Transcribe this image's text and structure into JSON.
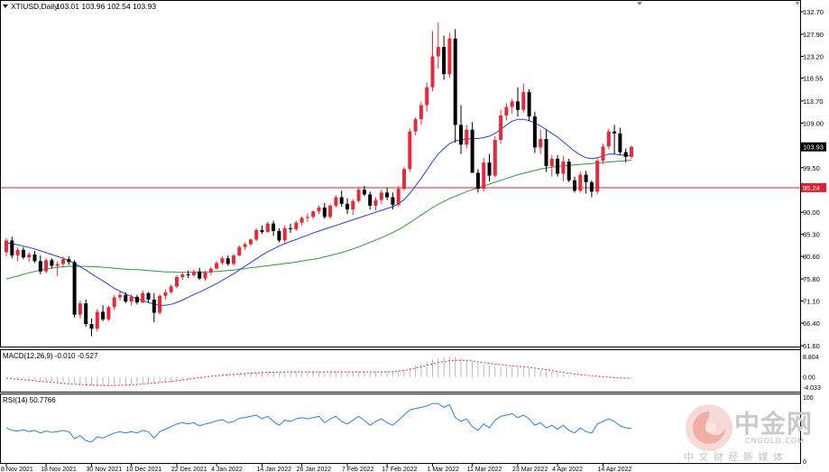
{
  "header": {
    "symbol": "XTIUSD,Daily",
    "ohlc": "103.01 103.96 102.54 103.93"
  },
  "macd_panel": {
    "label": "MACD(12,26,9) -0.010 -0.527",
    "ticks": [
      "8.804",
      "0.00",
      "-4.033"
    ]
  },
  "rsi_panel": {
    "label": "RSI(14) 50.7766",
    "ticks": [
      "100",
      "0"
    ]
  },
  "price_axis": {
    "ticks": [
      "132.70",
      "127.90",
      "123.20",
      "118.55",
      "113.70",
      "109.00",
      "99.50",
      "90.00",
      "85.30",
      "80.60",
      "75.80",
      "71.10",
      "66.40",
      "61.60"
    ],
    "current_price_label": "103.93",
    "hline_label": "95.24"
  },
  "date_axis": {
    "labels": [
      "8 Nov 2021",
      "18 Nov 2021",
      "30 Nov 2021",
      "10 Dec 2021",
      "22 Dec 2021",
      "4 Jan 2022",
      "14 Jan 2022",
      "26 Jan 2022",
      "7 Feb 2022",
      "17 Feb 2022",
      "1 Mar 2022",
      "11 Mar 2022",
      "23 Mar 2022",
      "4 Apr 2022",
      "14 Apr 2022"
    ]
  },
  "watermark": {
    "brand_cn": "中金网",
    "sub_cn": "中 文 财 经 新 媒 体",
    "domain": "CNGOLD.COM"
  },
  "colors": {
    "bull": "#e8293a",
    "bear": "#000000",
    "ma_fast": "#1f3fe6",
    "ma_slow": "#2f9a3a",
    "hline": "#dd2233",
    "macd_hist": "#b9b9b9",
    "macd_signal": "#e8293a",
    "rsi": "#2a7fe0",
    "current_price_bg": "#000000",
    "hline_label_bg": "#dd2233"
  },
  "chart_data": {
    "type": "candlestick",
    "title": "XTIUSD,Daily",
    "ylim": [
      61.6,
      132.7
    ],
    "hline": 95.24,
    "current_price": 103.93,
    "ohlc": [
      [
        81.5,
        84.5,
        80.6,
        84.0
      ],
      [
        84.0,
        84.8,
        80.2,
        80.8
      ],
      [
        80.8,
        82.5,
        79.6,
        82.0
      ],
      [
        82.0,
        82.6,
        80.0,
        80.4
      ],
      [
        80.4,
        81.5,
        79.4,
        81.0
      ],
      [
        81.0,
        81.8,
        79.2,
        79.6
      ],
      [
        79.6,
        80.8,
        76.8,
        77.4
      ],
      [
        77.4,
        80.2,
        77.0,
        79.8
      ],
      [
        79.8,
        80.2,
        78.0,
        78.6
      ],
      [
        78.6,
        79.6,
        76.4,
        79.0
      ],
      [
        79.0,
        80.6,
        78.2,
        80.0
      ],
      [
        80.0,
        80.6,
        78.8,
        79.4
      ],
      [
        79.4,
        79.8,
        67.6,
        68.2
      ],
      [
        68.2,
        71.2,
        67.4,
        70.6
      ],
      [
        70.6,
        71.4,
        65.6,
        66.2
      ],
      [
        66.2,
        67.4,
        63.6,
        65.2
      ],
      [
        65.2,
        69.4,
        64.6,
        68.8
      ],
      [
        68.8,
        70.2,
        66.8,
        67.2
      ],
      [
        67.2,
        70.2,
        66.8,
        69.8
      ],
      [
        69.8,
        72.4,
        69.2,
        71.9
      ],
      [
        71.9,
        73.2,
        71.2,
        72.4
      ],
      [
        72.4,
        73.0,
        70.6,
        71.0
      ],
      [
        71.0,
        72.6,
        70.2,
        72.0
      ],
      [
        72.0,
        72.4,
        70.4,
        70.8
      ],
      [
        70.8,
        73.4,
        70.6,
        72.8
      ],
      [
        72.8,
        73.0,
        70.8,
        71.4
      ],
      [
        71.4,
        72.8,
        66.6,
        68.6
      ],
      [
        68.6,
        72.6,
        68.2,
        72.2
      ],
      [
        72.2,
        73.6,
        71.4,
        73.0
      ],
      [
        73.0,
        74.6,
        72.6,
        74.2
      ],
      [
        74.2,
        76.6,
        73.8,
        76.2
      ],
      [
        76.2,
        77.2,
        75.6,
        76.8
      ],
      [
        76.8,
        77.6,
        76.0,
        76.6
      ],
      [
        76.6,
        77.8,
        76.2,
        77.4
      ],
      [
        77.4,
        78.2,
        75.6,
        75.9
      ],
      [
        75.9,
        77.6,
        75.4,
        77.2
      ],
      [
        77.2,
        78.4,
        76.6,
        78.0
      ],
      [
        78.0,
        79.6,
        77.8,
        79.2
      ],
      [
        79.2,
        80.6,
        78.8,
        80.2
      ],
      [
        80.2,
        80.8,
        78.6,
        79.0
      ],
      [
        79.0,
        81.2,
        78.6,
        80.8
      ],
      [
        80.8,
        83.0,
        80.6,
        82.6
      ],
      [
        82.6,
        83.6,
        82.0,
        83.2
      ],
      [
        83.2,
        84.4,
        82.8,
        84.2
      ],
      [
        84.2,
        86.6,
        83.8,
        86.2
      ],
      [
        86.2,
        87.2,
        85.4,
        85.8
      ],
      [
        85.8,
        88.0,
        85.6,
        87.6
      ],
      [
        87.6,
        88.2,
        85.0,
        86.0
      ],
      [
        86.0,
        86.6,
        83.6,
        84.0
      ],
      [
        84.0,
        87.2,
        83.2,
        86.6
      ],
      [
        86.6,
        87.6,
        85.6,
        86.4
      ],
      [
        86.4,
        88.2,
        86.0,
        87.8
      ],
      [
        87.8,
        89.2,
        87.2,
        88.8
      ],
      [
        88.8,
        89.8,
        88.0,
        89.0
      ],
      [
        89.0,
        90.4,
        88.6,
        90.2
      ],
      [
        90.2,
        91.4,
        89.6,
        91.0
      ],
      [
        91.0,
        92.0,
        88.6,
        89.0
      ],
      [
        89.0,
        91.8,
        88.6,
        91.4
      ],
      [
        91.4,
        93.6,
        91.0,
        93.2
      ],
      [
        93.2,
        94.6,
        91.2,
        91.8
      ],
      [
        91.8,
        93.0,
        89.6,
        90.6
      ],
      [
        90.6,
        92.8,
        89.4,
        92.4
      ],
      [
        92.4,
        95.4,
        92.0,
        94.8
      ],
      [
        94.8,
        95.6,
        93.4,
        93.8
      ],
      [
        93.8,
        94.4,
        90.6,
        91.4
      ],
      [
        91.4,
        93.2,
        90.4,
        92.6
      ],
      [
        92.6,
        94.8,
        91.8,
        94.2
      ],
      [
        94.2,
        95.2,
        92.6,
        93.2
      ],
      [
        93.2,
        94.2,
        90.6,
        91.6
      ],
      [
        91.6,
        95.6,
        91.2,
        95.0
      ],
      [
        95.0,
        99.6,
        94.6,
        99.2
      ],
      [
        99.2,
        107.8,
        98.6,
        107.2
      ],
      [
        107.2,
        110.2,
        106.4,
        109.8
      ],
      [
        109.8,
        113.6,
        108.6,
        112.8
      ],
      [
        112.8,
        117.6,
        111.4,
        116.6
      ],
      [
        116.6,
        128.6,
        115.8,
        123.2
      ],
      [
        123.2,
        130.4,
        120.6,
        125.2
      ],
      [
        125.2,
        127.6,
        118.2,
        119.4
      ],
      [
        119.4,
        128.2,
        118.6,
        127.0
      ],
      [
        127.0,
        129.0,
        104.8,
        108.6
      ],
      [
        108.6,
        112.8,
        102.4,
        104.4
      ],
      [
        104.4,
        108.6,
        103.6,
        107.6
      ],
      [
        107.6,
        109.2,
        98.6,
        98.4
      ],
      [
        98.4,
        99.2,
        94.2,
        95.0
      ],
      [
        95.0,
        101.6,
        94.4,
        100.6
      ],
      [
        100.6,
        102.4,
        96.6,
        97.8
      ],
      [
        97.8,
        106.2,
        97.4,
        105.4
      ],
      [
        105.4,
        111.8,
        104.6,
        110.6
      ],
      [
        110.6,
        113.2,
        109.6,
        112.4
      ],
      [
        112.4,
        114.2,
        111.0,
        113.6
      ],
      [
        113.6,
        116.6,
        110.4,
        111.8
      ],
      [
        111.8,
        117.4,
        111.2,
        115.6
      ],
      [
        115.6,
        116.2,
        109.4,
        110.4
      ],
      [
        110.4,
        111.4,
        102.6,
        103.8
      ],
      [
        103.8,
        107.6,
        102.4,
        105.6
      ],
      [
        105.6,
        107.6,
        98.6,
        99.8
      ],
      [
        99.8,
        102.2,
        97.6,
        101.4
      ],
      [
        101.4,
        102.2,
        97.6,
        98.2
      ],
      [
        98.2,
        102.0,
        96.6,
        100.8
      ],
      [
        100.8,
        101.4,
        96.4,
        96.8
      ],
      [
        96.8,
        97.6,
        94.2,
        94.6
      ],
      [
        94.6,
        98.6,
        94.2,
        98.0
      ],
      [
        98.0,
        98.8,
        94.0,
        96.4
      ],
      [
        96.4,
        96.8,
        93.2,
        94.4
      ],
      [
        94.4,
        101.6,
        93.8,
        101.0
      ],
      [
        101.0,
        104.6,
        100.2,
        104.0
      ],
      [
        104.0,
        107.8,
        103.4,
        107.2
      ],
      [
        107.2,
        108.6,
        102.4,
        106.8
      ],
      [
        106.8,
        108.0,
        102.2,
        102.8
      ],
      [
        102.8,
        103.6,
        100.6,
        101.8
      ],
      [
        101.8,
        104.2,
        101.4,
        103.9
      ]
    ],
    "ma_fast": [
      83.5,
      83.3,
      83.1,
      82.8,
      82.5,
      82.2,
      81.8,
      81.4,
      81.0,
      80.6,
      80.2,
      79.7,
      79.1,
      78.4,
      77.7,
      76.9,
      76.1,
      75.4,
      74.6,
      73.8,
      73.2,
      72.6,
      72.1,
      71.6,
      71.2,
      70.8,
      70.4,
      70.2,
      70.2,
      70.4,
      70.8,
      71.3,
      71.9,
      72.5,
      73.0,
      73.6,
      74.2,
      74.8,
      75.5,
      76.2,
      76.9,
      77.7,
      78.5,
      79.3,
      80.1,
      80.9,
      81.6,
      82.2,
      82.8,
      83.3,
      83.8,
      84.2,
      84.7,
      85.1,
      85.6,
      86.0,
      86.4,
      86.8,
      87.2,
      87.6,
      88.0,
      88.4,
      88.8,
      89.2,
      89.6,
      90.0,
      90.4,
      90.8,
      91.2,
      91.8,
      92.7,
      94.0,
      95.6,
      97.2,
      99.0,
      100.8,
      102.4,
      103.6,
      104.6,
      105.2,
      105.4,
      105.6,
      105.7,
      105.7,
      105.9,
      106.2,
      106.8,
      107.6,
      108.6,
      109.4,
      109.8,
      109.8,
      109.5,
      109.0,
      108.4,
      107.6,
      106.8,
      106.0,
      105.0,
      104.0,
      103.0,
      102.2,
      101.6,
      101.4,
      101.6,
      102.0,
      102.4,
      102.4,
      102.2,
      102.1,
      102.1
    ],
    "ma_slow": [
      75.8,
      76.1,
      76.4,
      76.8,
      77.1,
      77.4,
      77.7,
      77.9,
      78.1,
      78.3,
      78.4,
      78.5,
      78.5,
      78.5,
      78.5,
      78.4,
      78.4,
      78.3,
      78.2,
      78.1,
      78.0,
      77.9,
      77.8,
      77.8,
      77.7,
      77.6,
      77.5,
      77.4,
      77.3,
      77.3,
      77.2,
      77.2,
      77.2,
      77.2,
      77.2,
      77.3,
      77.3,
      77.4,
      77.5,
      77.6,
      77.7,
      77.9,
      78.0,
      78.2,
      78.3,
      78.5,
      78.6,
      78.8,
      78.9,
      79.1,
      79.2,
      79.4,
      79.6,
      79.8,
      80.0,
      80.2,
      80.5,
      80.8,
      81.1,
      81.4,
      81.8,
      82.2,
      82.6,
      83.1,
      83.6,
      84.1,
      84.6,
      85.1,
      85.7,
      86.3,
      87.0,
      87.8,
      88.6,
      89.4,
      90.2,
      91.0,
      91.7,
      92.3,
      92.9,
      93.4,
      93.9,
      94.4,
      94.8,
      95.2,
      95.6,
      96.0,
      96.4,
      96.8,
      97.2,
      97.6,
      98.0,
      98.3,
      98.6,
      98.9,
      99.2,
      99.4,
      99.6,
      99.8,
      99.9,
      100.0,
      100.1,
      100.2,
      100.3,
      100.4,
      100.5,
      100.6,
      100.7,
      100.8,
      100.9,
      101.0,
      101.1
    ],
    "macd": {
      "ylim": [
        -4.033,
        8.804
      ],
      "histogram": [
        -0.2,
        -0.4,
        -0.6,
        -0.8,
        -1.0,
        -1.2,
        -1.4,
        -1.6,
        -1.8,
        -2.0,
        -2.1,
        -2.3,
        -2.6,
        -2.9,
        -3.1,
        -3.3,
        -3.4,
        -3.4,
        -3.4,
        -3.3,
        -3.2,
        -3.1,
        -3.0,
        -2.9,
        -2.7,
        -2.6,
        -2.5,
        -2.3,
        -2.1,
        -1.9,
        -1.6,
        -1.3,
        -1.0,
        -0.7,
        -0.4,
        -0.1,
        0.2,
        0.5,
        0.7,
        0.9,
        1.1,
        1.3,
        1.5,
        1.7,
        1.8,
        1.9,
        2.0,
        2.0,
        2.0,
        2.0,
        2.0,
        2.0,
        2.0,
        2.0,
        2.0,
        2.1,
        2.1,
        2.1,
        2.1,
        2.1,
        2.1,
        2.1,
        2.1,
        2.1,
        2.0,
        2.0,
        2.0,
        2.0,
        2.0,
        2.3,
        2.8,
        3.6,
        4.5,
        5.3,
        6.1,
        7.0,
        7.6,
        7.9,
        8.2,
        8.0,
        7.5,
        7.0,
        6.3,
        5.5,
        5.0,
        4.4,
        4.1,
        4.0,
        3.9,
        3.9,
        3.8,
        3.6,
        3.4,
        3.0,
        2.6,
        2.3,
        1.9,
        1.5,
        1.1,
        0.7,
        0.4,
        0.2,
        0.1,
        0.1,
        0.1,
        0.2,
        0.2,
        0.1,
        0.0,
        0.0,
        0.0
      ],
      "signal": [
        -0.5,
        -0.7,
        -0.9,
        -1.1,
        -1.3,
        -1.5,
        -1.7,
        -1.9,
        -2.1,
        -2.3,
        -2.5,
        -2.7,
        -2.9,
        -3.0,
        -3.1,
        -3.2,
        -3.3,
        -3.4,
        -3.4,
        -3.4,
        -3.3,
        -3.2,
        -3.1,
        -3.0,
        -2.8,
        -2.6,
        -2.4,
        -2.2,
        -2.0,
        -1.8,
        -1.5,
        -1.2,
        -0.9,
        -0.6,
        -0.3,
        0.0,
        0.3,
        0.5,
        0.7,
        0.9,
        1.0,
        1.2,
        1.3,
        1.5,
        1.6,
        1.7,
        1.8,
        1.9,
        1.9,
        2.0,
        2.0,
        2.0,
        2.0,
        2.0,
        2.0,
        2.0,
        2.0,
        2.0,
        2.0,
        2.0,
        2.0,
        2.0,
        2.0,
        2.0,
        2.0,
        2.0,
        2.0,
        2.0,
        2.1,
        2.3,
        2.6,
        3.0,
        3.5,
        4.0,
        4.6,
        5.2,
        5.7,
        6.1,
        6.4,
        6.6,
        6.6,
        6.5,
        6.3,
        6.0,
        5.7,
        5.4,
        5.1,
        4.9,
        4.6,
        4.4,
        4.2,
        4.0,
        3.8,
        3.5,
        3.2,
        2.9,
        2.5,
        2.1,
        1.8,
        1.5,
        1.2,
        0.9,
        0.7,
        0.5,
        0.3,
        0.1,
        -0.1,
        -0.3,
        -0.4,
        -0.5,
        -0.53
      ]
    },
    "rsi": {
      "ylim": [
        0,
        100
      ],
      "values": [
        52,
        48,
        47,
        49,
        46,
        48,
        44,
        47,
        45,
        46,
        48,
        46,
        35,
        40,
        32,
        30,
        38,
        36,
        40,
        44,
        46,
        44,
        46,
        44,
        48,
        46,
        36,
        46,
        50,
        54,
        58,
        60,
        58,
        60,
        55,
        58,
        60,
        63,
        65,
        60,
        62,
        67,
        68,
        70,
        72,
        66,
        70,
        62,
        56,
        64,
        62,
        66,
        68,
        66,
        68,
        70,
        60,
        66,
        70,
        62,
        58,
        64,
        70,
        64,
        56,
        62,
        66,
        60,
        56,
        64,
        72,
        80,
        82,
        84,
        86,
        90,
        90,
        84,
        88,
        68,
        62,
        66,
        54,
        48,
        58,
        52,
        64,
        70,
        72,
        74,
        68,
        72,
        66,
        56,
        60,
        52,
        56,
        50,
        56,
        48,
        44,
        52,
        46,
        44,
        58,
        62,
        66,
        62,
        55,
        52,
        51
      ]
    }
  }
}
